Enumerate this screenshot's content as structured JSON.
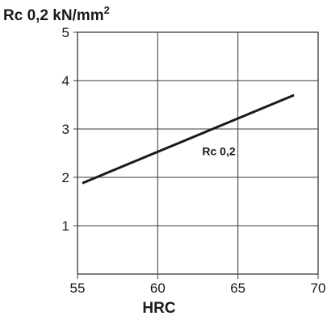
{
  "chart_data": {
    "type": "line",
    "ylabel": "Rc 0,2 kN/mm",
    "ylabel_superscript": "2",
    "xlabel": "HRC",
    "xlim": [
      55,
      70
    ],
    "ylim": [
      0,
      5
    ],
    "x_ticks": [
      55,
      60,
      65,
      70
    ],
    "y_ticks": [
      1,
      2,
      3,
      4,
      5
    ],
    "grid": true,
    "series": [
      {
        "name": "Rc 0,2",
        "x": [
          55.3,
          68.5
        ],
        "y": [
          1.88,
          3.7
        ]
      }
    ]
  }
}
